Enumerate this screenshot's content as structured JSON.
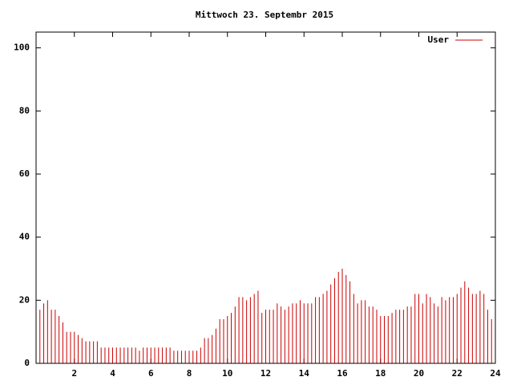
{
  "chart_data": {
    "type": "impulse",
    "title": "Mittwoch 23. Septembr 2015",
    "series": [
      {
        "name": "User",
        "color": "#cc0000",
        "x": [
          0,
          0.2,
          0.4,
          0.6,
          0.8,
          1,
          1.2,
          1.4,
          1.6,
          1.8,
          2,
          2.2,
          2.4,
          2.6,
          2.8,
          3,
          3.2,
          3.4,
          3.6,
          3.8,
          4,
          4.2,
          4.4,
          4.6,
          4.8,
          5,
          5.2,
          5.4,
          5.6,
          5.8,
          6,
          6.2,
          6.4,
          6.6,
          6.8,
          7,
          7.2,
          7.4,
          7.6,
          7.8,
          8,
          8.2,
          8.4,
          8.6,
          8.8,
          9,
          9.2,
          9.4,
          9.6,
          9.8,
          10,
          10.2,
          10.4,
          10.6,
          10.8,
          11,
          11.2,
          11.4,
          11.6,
          11.8,
          12,
          12.2,
          12.4,
          12.6,
          12.8,
          13,
          13.2,
          13.4,
          13.6,
          13.8,
          14,
          14.2,
          14.4,
          14.6,
          14.8,
          15,
          15.2,
          15.4,
          15.6,
          15.8,
          16,
          16.2,
          16.4,
          16.6,
          16.8,
          17,
          17.2,
          17.4,
          17.6,
          17.8,
          18,
          18.2,
          18.4,
          18.6,
          18.8,
          19,
          19.2,
          19.4,
          19.6,
          19.8,
          20,
          20.2,
          20.4,
          20.6,
          20.8,
          21,
          21.2,
          21.4,
          21.6,
          21.8,
          22,
          22.2,
          22.4,
          22.6,
          22.8,
          23,
          23.2,
          23.4,
          23.6,
          23.8
        ],
        "values": [
          17,
          17,
          19,
          20,
          17,
          17,
          15,
          13,
          10,
          10,
          10,
          9,
          8,
          7,
          7,
          7,
          7,
          5,
          5,
          5,
          5,
          5,
          5,
          5,
          5,
          5,
          5,
          4,
          5,
          5,
          5,
          5,
          5,
          5,
          5,
          5,
          4,
          4,
          4,
          4,
          4,
          4,
          4,
          5,
          8,
          8,
          9,
          11,
          14,
          14,
          15,
          16,
          18,
          21,
          21,
          20,
          21,
          22,
          23,
          16,
          17,
          17,
          17,
          19,
          18,
          17,
          18,
          19,
          19,
          20,
          19,
          19,
          19,
          21,
          21,
          22,
          23,
          25,
          27,
          29,
          30,
          28,
          26,
          22,
          19,
          20,
          20,
          18,
          18,
          17,
          15,
          15,
          15,
          16,
          17,
          17,
          17,
          18,
          18,
          22,
          22,
          19,
          22,
          21,
          19,
          18,
          21,
          20,
          21,
          21,
          22,
          24,
          26,
          24,
          22,
          22,
          23,
          22,
          17,
          14
        ]
      }
    ],
    "xlim": [
      0,
      24
    ],
    "xticks": [
      2,
      4,
      6,
      8,
      10,
      12,
      14,
      16,
      18,
      20,
      22,
      24
    ],
    "ylim": [
      0,
      105
    ],
    "yticks": [
      0,
      20,
      40,
      60,
      80,
      100
    ],
    "legend": "top right"
  }
}
